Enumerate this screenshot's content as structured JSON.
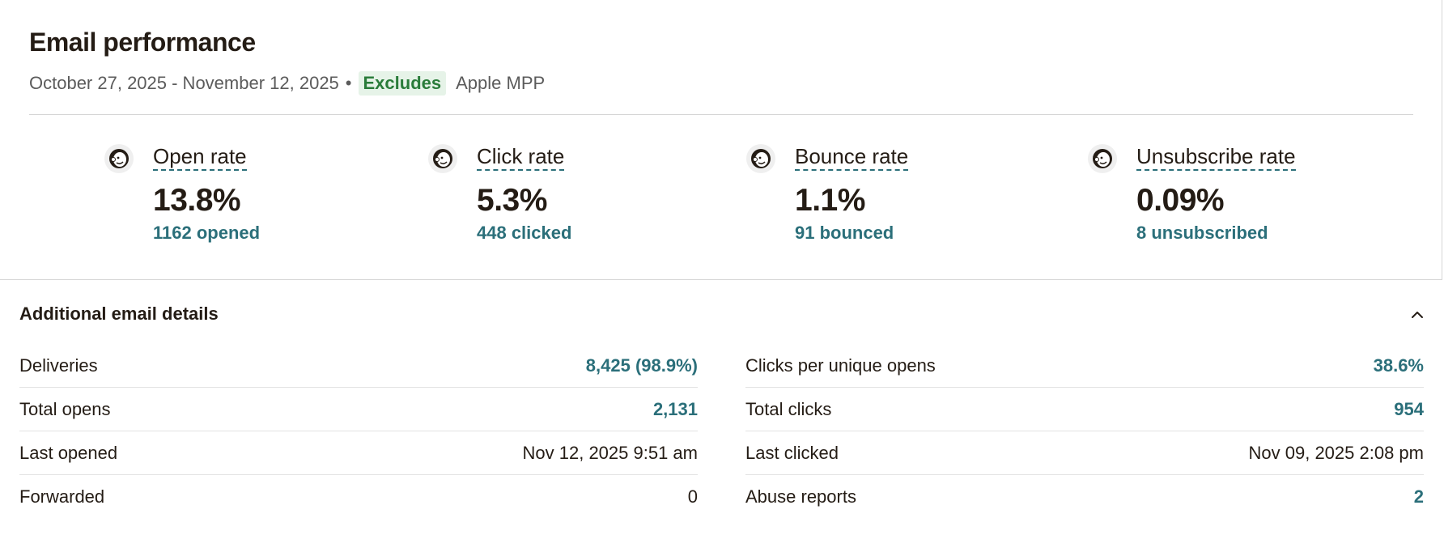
{
  "header": {
    "title": "Email performance",
    "date_range": "October 27, 2025 - November 12, 2025",
    "separator": "•",
    "badge": "Excludes",
    "badge_suffix": "Apple MPP"
  },
  "metrics": [
    {
      "label": "Open rate",
      "value": "13.8%",
      "sub": "1162 opened",
      "icon": "mailchimp-freddie-icon"
    },
    {
      "label": "Click rate",
      "value": "5.3%",
      "sub": "448 clicked",
      "icon": "mailchimp-freddie-icon"
    },
    {
      "label": "Bounce rate",
      "value": "1.1%",
      "sub": "91 bounced",
      "icon": "mailchimp-freddie-icon"
    },
    {
      "label": "Unsubscribe rate",
      "value": "0.09%",
      "sub": "8 unsubscribed",
      "icon": "mailchimp-freddie-icon"
    }
  ],
  "details": {
    "title": "Additional email details",
    "toggle_icon": "chevron-up-icon",
    "left": [
      {
        "label": "Deliveries",
        "value": "8,425 (98.9%)"
      },
      {
        "label": "Total opens",
        "value": "2,131"
      },
      {
        "label": "Last opened",
        "value": "Nov 12, 2025 9:51 am"
      },
      {
        "label": "Forwarded",
        "value": "0"
      }
    ],
    "right": [
      {
        "label": "Clicks per unique opens",
        "value": "38.6%"
      },
      {
        "label": "Total clicks",
        "value": "954"
      },
      {
        "label": "Last clicked",
        "value": "Nov 09, 2025 2:08 pm"
      },
      {
        "label": "Abuse reports",
        "value": "2"
      }
    ]
  },
  "colors": {
    "accent_teal": "#2b6f7a",
    "badge_bg": "#e6f3e8",
    "badge_text": "#2a7c3a",
    "text": "#241c15"
  }
}
